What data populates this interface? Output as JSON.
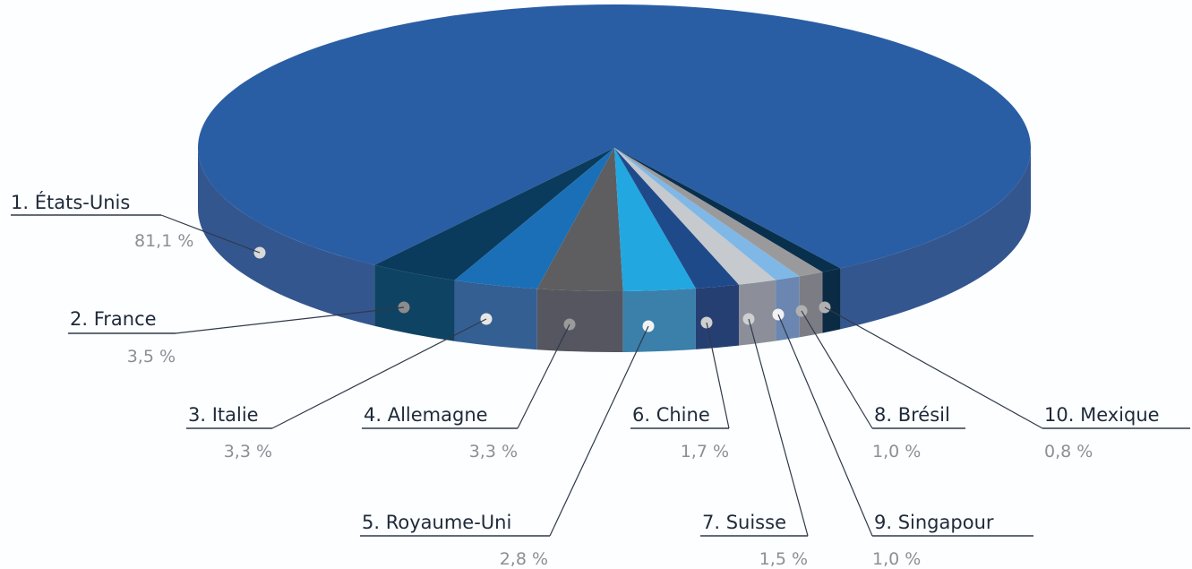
{
  "chart_data": {
    "type": "pie",
    "categories": [
      "États-Unis",
      "France",
      "Italie",
      "Allemagne",
      "Royaume-Uni",
      "Chine",
      "Suisse",
      "Brésil",
      "Singapour",
      "Mexique"
    ],
    "values": [
      81.1,
      3.5,
      3.3,
      3.3,
      2.8,
      1.7,
      1.5,
      1.0,
      1.0,
      0.8
    ],
    "labels": [
      {
        "name": "1. États-Unis",
        "pct": "81,1 %"
      },
      {
        "name": "2. France",
        "pct": "3,5 %"
      },
      {
        "name": "3. Italie",
        "pct": "3,3 %"
      },
      {
        "name": "4. Allemagne",
        "pct": "3,3 %"
      },
      {
        "name": "5. Royaume-Uni",
        "pct": "2,8 %"
      },
      {
        "name": "6. Chine",
        "pct": "1,7 %"
      },
      {
        "name": "7. Suisse",
        "pct": "1,5 %"
      },
      {
        "name": "8. Brésil",
        "pct": "1,0 %"
      },
      {
        "name": "9. Singapour",
        "pct": "1,0 %"
      },
      {
        "name": "10. Mexique",
        "pct": "0,8 %"
      }
    ],
    "colors": [
      "#2a5ea4",
      "#0a3b5c",
      "#1a6fb7",
      "#5e5e60",
      "#23a7e0",
      "#1f4a8a",
      "#c6c9ce",
      "#7fb8e6",
      "#9a9a9c",
      "#08304c"
    ],
    "side_colors": [
      "#34568f",
      "#0f4363",
      "#345f93",
      "#555660",
      "#3b7fab",
      "#263f73",
      "#8c8f9a",
      "#6a86b1",
      "#7c7d84",
      "#0b2a44"
    ],
    "dot_colors": [
      "#d9d9d9",
      "#8c8c8c",
      "#e6e6e6",
      "#9a9a9a",
      "#f2f2f2",
      "#cfcfcf",
      "#cfcfcf",
      "#b0b0b0",
      "#f2f2f2",
      "#b0b0b0"
    ],
    "title": "",
    "legend": "none"
  }
}
